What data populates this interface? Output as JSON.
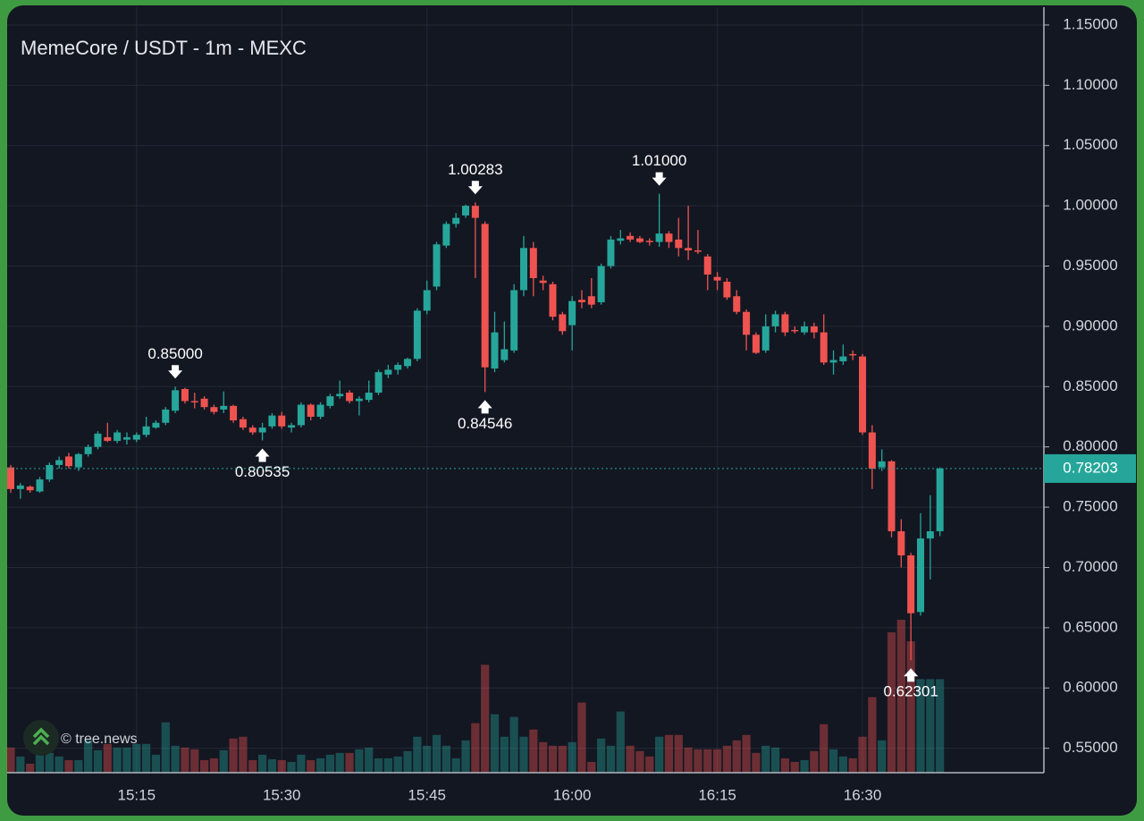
{
  "chart_data": {
    "type": "candlestick",
    "title": "MemeCore / USDT - 1m - MEXC",
    "watermark": "© tree.news",
    "categories": [
      null,
      null,
      null,
      null,
      null,
      null,
      null,
      null,
      null,
      null,
      null,
      null,
      null,
      "15:15",
      null,
      null,
      null,
      null,
      null,
      null,
      null,
      null,
      null,
      null,
      null,
      null,
      null,
      null,
      "15:30",
      null,
      null,
      null,
      null,
      null,
      null,
      null,
      null,
      null,
      null,
      null,
      null,
      null,
      null,
      "15:45",
      null,
      null,
      null,
      null,
      null,
      null,
      null,
      null,
      null,
      null,
      null,
      null,
      null,
      null,
      "16:00",
      null,
      null,
      null,
      null,
      null,
      null,
      null,
      null,
      null,
      null,
      null,
      null,
      null,
      null,
      "16:15",
      null,
      null,
      null,
      null,
      null,
      null,
      null,
      null,
      null,
      null,
      null,
      null,
      null,
      null,
      "16:30",
      null,
      null,
      null,
      null,
      null,
      null,
      null,
      null
    ],
    "open": [
      0.783,
      0.765,
      0.767,
      0.763,
      0.773,
      0.785,
      0.792,
      0.783,
      0.794,
      0.8,
      0.808,
      0.805,
      0.806,
      0.806,
      0.81,
      0.816,
      0.82,
      0.83,
      0.848,
      0.838,
      0.84,
      0.833,
      0.831,
      0.834,
      0.823,
      0.816,
      0.812,
      0.817,
      0.826,
      0.816,
      0.818,
      0.835,
      0.825,
      0.834,
      0.842,
      0.845,
      0.838,
      0.839,
      0.845,
      0.86,
      0.864,
      0.867,
      0.873,
      0.913,
      0.933,
      0.967,
      0.985,
      0.992,
      1.0,
      0.985,
      0.865,
      0.872,
      0.88,
      0.93,
      0.965,
      0.938,
      0.935,
      0.91,
      0.901,
      0.922,
      0.925,
      0.92,
      0.95,
      0.971,
      0.975,
      0.973,
      0.971,
      0.97,
      0.977,
      0.972,
      0.965,
      0.963,
      0.958,
      0.941,
      0.937,
      0.925,
      0.912,
      0.893,
      0.88,
      0.9,
      0.91,
      0.897,
      0.895,
      0.9,
      0.895,
      0.87,
      0.871,
      0.877,
      0.875,
      0.812,
      0.783,
      0.788,
      0.73,
      0.71,
      0.663,
      0.724,
      0.73
    ],
    "high": [
      0.785,
      0.77,
      0.768,
      0.775,
      0.787,
      0.792,
      0.795,
      0.795,
      0.802,
      0.813,
      0.82,
      0.814,
      0.812,
      0.812,
      0.825,
      0.822,
      0.833,
      0.85,
      0.849,
      0.845,
      0.842,
      0.835,
      0.846,
      0.835,
      0.825,
      0.818,
      0.82,
      0.828,
      0.829,
      0.82,
      0.837,
      0.836,
      0.837,
      0.844,
      0.855,
      0.847,
      0.842,
      0.855,
      0.864,
      0.868,
      0.87,
      0.874,
      0.915,
      0.938,
      0.97,
      0.987,
      0.994,
      1.001,
      1.00283,
      0.987,
      0.912,
      0.904,
      0.935,
      0.975,
      0.97,
      0.942,
      0.937,
      0.912,
      0.925,
      0.93,
      0.94,
      0.952,
      0.975,
      0.98,
      0.978,
      0.975,
      0.973,
      1.01,
      0.979,
      0.99,
      1.0,
      0.98,
      0.96,
      0.945,
      0.94,
      0.93,
      0.914,
      0.895,
      0.91,
      0.913,
      0.912,
      0.9,
      0.904,
      0.903,
      0.91,
      0.88,
      0.885,
      0.88,
      0.877,
      0.818,
      0.798,
      0.789,
      0.74,
      0.712,
      0.745,
      0.76,
      0.783
    ],
    "low": [
      0.762,
      0.757,
      0.762,
      0.762,
      0.771,
      0.782,
      0.782,
      0.78,
      0.792,
      0.798,
      0.804,
      0.803,
      0.802,
      0.804,
      0.808,
      0.815,
      0.818,
      0.828,
      0.836,
      0.832,
      0.831,
      0.827,
      0.828,
      0.82,
      0.814,
      0.81,
      0.80535,
      0.815,
      0.815,
      0.812,
      0.816,
      0.822,
      0.823,
      0.832,
      0.84,
      0.836,
      0.826,
      0.837,
      0.843,
      0.857,
      0.86,
      0.865,
      0.871,
      0.91,
      0.93,
      0.965,
      0.982,
      0.99,
      0.94,
      0.84546,
      0.862,
      0.87,
      0.878,
      0.925,
      0.925,
      0.93,
      0.905,
      0.893,
      0.88,
      0.915,
      0.915,
      0.918,
      0.948,
      0.968,
      0.97,
      0.969,
      0.967,
      0.966,
      0.965,
      0.958,
      0.955,
      0.96,
      0.93,
      0.93,
      0.922,
      0.91,
      0.88,
      0.877,
      0.878,
      0.895,
      0.892,
      0.894,
      0.893,
      0.89,
      0.868,
      0.86,
      0.868,
      0.872,
      0.81,
      0.765,
      0.78,
      0.725,
      0.7,
      0.62301,
      0.66,
      0.69,
      0.726
    ],
    "close": [
      0.765,
      0.768,
      0.764,
      0.773,
      0.785,
      0.789,
      0.784,
      0.794,
      0.8,
      0.811,
      0.805,
      0.812,
      0.808,
      0.81,
      0.817,
      0.82,
      0.831,
      0.847,
      0.838,
      0.837,
      0.833,
      0.829,
      0.834,
      0.822,
      0.816,
      0.812,
      0.816,
      0.826,
      0.817,
      0.818,
      0.835,
      0.825,
      0.835,
      0.842,
      0.844,
      0.838,
      0.84,
      0.845,
      0.862,
      0.864,
      0.868,
      0.873,
      0.913,
      0.93,
      0.968,
      0.985,
      0.99,
      1.0,
      0.99,
      0.866,
      0.895,
      0.881,
      0.93,
      0.965,
      0.94,
      0.936,
      0.908,
      0.896,
      0.921,
      0.92,
      0.918,
      0.95,
      0.972,
      0.973,
      0.972,
      0.97,
      0.97,
      0.977,
      0.97,
      0.965,
      0.963,
      0.962,
      0.943,
      0.938,
      0.924,
      0.912,
      0.893,
      0.878,
      0.9,
      0.91,
      0.895,
      0.896,
      0.9,
      0.895,
      0.87,
      0.872,
      0.875,
      0.876,
      0.812,
      0.782,
      0.788,
      0.73,
      0.71,
      0.662,
      0.724,
      0.73,
      0.78203
    ],
    "volume": [
      28,
      18,
      10,
      20,
      22,
      18,
      14,
      14,
      36,
      25,
      32,
      28,
      28,
      32,
      32,
      20,
      56,
      30,
      28,
      26,
      14,
      16,
      25,
      38,
      40,
      14,
      20,
      15,
      14,
      12,
      20,
      14,
      16,
      20,
      22,
      22,
      26,
      28,
      16,
      16,
      18,
      24,
      40,
      30,
      42,
      30,
      16,
      36,
      55,
      120,
      65,
      40,
      62,
      40,
      48,
      34,
      30,
      30,
      34,
      78,
      12,
      38,
      30,
      68,
      30,
      24,
      18,
      40,
      42,
      42,
      28,
      26,
      26,
      26,
      30,
      36,
      42,
      22,
      30,
      28,
      16,
      12,
      14,
      24,
      54,
      26,
      18,
      16,
      40,
      84,
      36,
      156,
      170,
      146,
      104,
      104,
      104
    ],
    "up_color": "#26a69a",
    "down_color": "#ef5350",
    "ylim": [
      0.5297,
      1.1648
    ],
    "yticks": [
      {
        "value": 0.55,
        "label": "0.55000"
      },
      {
        "value": 0.6,
        "label": "0.60000"
      },
      {
        "value": 0.65,
        "label": "0.65000"
      },
      {
        "value": 0.7,
        "label": "0.70000"
      },
      {
        "value": 0.75,
        "label": "0.75000"
      },
      {
        "value": 0.8,
        "label": "0.80000"
      },
      {
        "value": 0.85,
        "label": "0.85000"
      },
      {
        "value": 0.9,
        "label": "0.90000"
      },
      {
        "value": 0.95,
        "label": "0.95000"
      },
      {
        "value": 1.0,
        "label": "1.00000"
      },
      {
        "value": 1.05,
        "label": "1.05000"
      },
      {
        "value": 1.1,
        "label": "1.10000"
      },
      {
        "value": 1.15,
        "label": "1.15000"
      }
    ],
    "grid": true,
    "annotations": [
      {
        "at": "high",
        "value": 0.85,
        "label": "0.85000"
      },
      {
        "at": "low",
        "value": 0.80535,
        "label": "0.80535"
      },
      {
        "at": "high",
        "value": 1.00283,
        "label": "1.00283"
      },
      {
        "at": "low",
        "value": 0.84546,
        "label": "0.84546"
      },
      {
        "at": "high",
        "value": 1.01,
        "label": "1.01000"
      },
      {
        "at": "low",
        "value": 0.62301,
        "label": "0.62301"
      }
    ],
    "last_price": {
      "value": 0.78203,
      "label": "0.78203"
    }
  }
}
